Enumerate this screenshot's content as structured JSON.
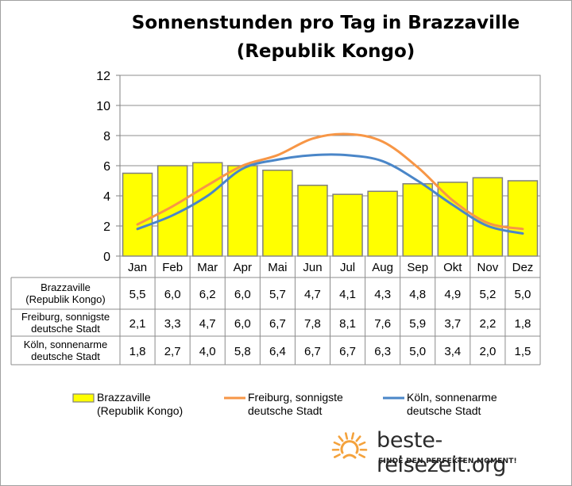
{
  "chart_data": {
    "type": "bar",
    "title": "Sonnenstunden pro Tag in Brazzaville",
    "subtitle": "(Republik Kongo)",
    "categories": [
      "Jan",
      "Feb",
      "Mar",
      "Apr",
      "Mai",
      "Jun",
      "Jul",
      "Aug",
      "Sep",
      "Okt",
      "Nov",
      "Dez"
    ],
    "ylim": [
      0,
      12
    ],
    "yticks": [
      "0",
      "2",
      "4",
      "6",
      "8",
      "10",
      "12"
    ],
    "grid": true,
    "legend": "bottom",
    "series": [
      {
        "name": "Brazzaville\n(Republik Kongo)",
        "type": "bar",
        "color": "#ffff00",
        "values": [
          5.5,
          6.0,
          6.2,
          6.0,
          5.7,
          4.7,
          4.1,
          4.3,
          4.8,
          4.9,
          5.2,
          5.0
        ],
        "labels": [
          "5,5",
          "6,0",
          "6,2",
          "6,0",
          "5,7",
          "4,7",
          "4,1",
          "4,3",
          "4,8",
          "4,9",
          "5,2",
          "5,0"
        ]
      },
      {
        "name": "Freiburg, sonnigste\ndeutsche Stadt",
        "type": "line",
        "color": "#f79646",
        "values": [
          2.1,
          3.3,
          4.7,
          6.0,
          6.7,
          7.8,
          8.1,
          7.6,
          5.9,
          3.7,
          2.2,
          1.8
        ],
        "labels": [
          "2,1",
          "3,3",
          "4,7",
          "6,0",
          "6,7",
          "7,8",
          "8,1",
          "7,6",
          "5,9",
          "3,7",
          "2,2",
          "1,8"
        ]
      },
      {
        "name": "Köln, sonnenarme\ndeutsche Stadt",
        "type": "line",
        "color": "#4a86c8",
        "values": [
          1.8,
          2.7,
          4.0,
          5.8,
          6.4,
          6.7,
          6.7,
          6.3,
          5.0,
          3.4,
          2.0,
          1.5
        ],
        "labels": [
          "1,8",
          "2,7",
          "4,0",
          "5,8",
          "6,4",
          "6,7",
          "6,7",
          "6,3",
          "5,0",
          "3,4",
          "2,0",
          "1,5"
        ]
      }
    ],
    "table_row_labels": [
      "Brazzaville\n(Republik Kongo)",
      "Freiburg, sonnigste\ndeutsche Stadt",
      "Köln, sonnenarme\ndeutsche Stadt"
    ]
  },
  "branding": {
    "name": "beste-reisezeit.org",
    "slogan": "FINDE DEN PERFEKTEN MOMENT!",
    "icon": "sun-icon",
    "icon_color": "#f4a23c"
  }
}
